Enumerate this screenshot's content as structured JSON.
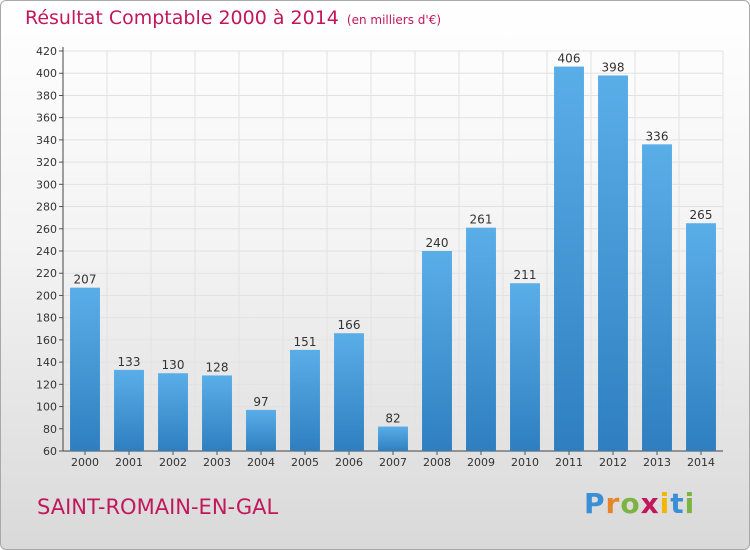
{
  "chart_data": {
    "type": "bar",
    "title": "Résultat Comptable 2000 à 2014",
    "subtitle": "(en milliers d'€)",
    "categories": [
      "2000",
      "2001",
      "2002",
      "2003",
      "2004",
      "2005",
      "2006",
      "2007",
      "2008",
      "2009",
      "2010",
      "2011",
      "2012",
      "2013",
      "2014"
    ],
    "values": [
      207,
      133,
      130,
      128,
      97,
      151,
      166,
      82,
      240,
      261,
      211,
      406,
      398,
      336,
      265
    ],
    "ylim": [
      60,
      420
    ],
    "yticks": [
      60,
      80,
      100,
      120,
      140,
      160,
      180,
      200,
      220,
      240,
      260,
      280,
      300,
      320,
      340,
      360,
      380,
      400,
      420
    ],
    "xlabel": "",
    "ylabel": "",
    "grid": true,
    "bar_color_top": "#5aaee8",
    "bar_color_bottom": "#2f7fc0"
  },
  "commune": "SAINT-ROMAIN-EN-GAL",
  "logo": {
    "letters": [
      "P",
      "r",
      "o",
      "x",
      "i",
      "t",
      "i"
    ],
    "colors": [
      "#3a8fd6",
      "#e6862a",
      "#7cb342",
      "#c2185b",
      "#f2b705",
      "#3a8fd6",
      "#7cb342"
    ]
  }
}
